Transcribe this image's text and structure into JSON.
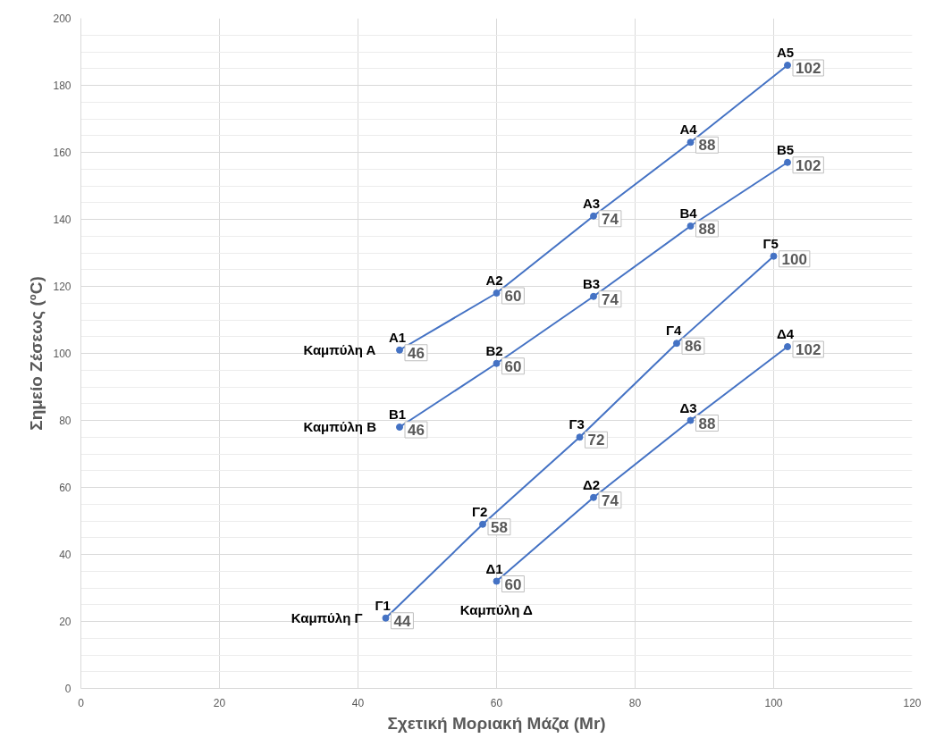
{
  "chart_data": {
    "type": "line",
    "xlabel": "Σχετική Μοριακή Μάζα (Mr)",
    "ylabel": "Σημείο Ζέσεως (ºC)",
    "xlim": [
      0,
      120
    ],
    "xticks": [
      0,
      20,
      40,
      60,
      80,
      100,
      120
    ],
    "ylim": [
      0,
      200
    ],
    "yticks": [
      0,
      20,
      40,
      60,
      80,
      100,
      120,
      140,
      160,
      180,
      200
    ],
    "grid": true,
    "marker": "circle",
    "line_style": "solid",
    "series": [
      {
        "name": "Καμπύλη Α",
        "color": "#4472c4",
        "x": [
          46,
          60,
          74,
          88,
          102
        ],
        "values": [
          101,
          118,
          141,
          163,
          186
        ]
      },
      {
        "name": "Καμπύλη Β",
        "color": "#4472c4",
        "x": [
          46,
          60,
          74,
          88,
          102
        ],
        "values": [
          78,
          97,
          117,
          138,
          157
        ]
      },
      {
        "name": "Καμπύλη Γ",
        "color": "#4472c4",
        "x": [
          44,
          58,
          72,
          86,
          100
        ],
        "values": [
          21,
          49,
          75,
          103,
          129
        ]
      },
      {
        "name": "Καμπύλη Δ",
        "color": "#4472c4",
        "x": [
          60,
          74,
          88,
          102
        ],
        "values": [
          32,
          57,
          80,
          102
        ]
      }
    ],
    "annotations": [
      {
        "text": "Α1",
        "x": 46,
        "y": 101
      },
      {
        "text": "46",
        "x": 46,
        "y": 101
      },
      {
        "text": "Α2",
        "x": 60,
        "y": 118
      },
      {
        "text": "60",
        "x": 60,
        "y": 118
      },
      {
        "text": "Α3",
        "x": 74,
        "y": 141
      },
      {
        "text": "74",
        "x": 74,
        "y": 141
      },
      {
        "text": "Α4",
        "x": 88,
        "y": 163
      },
      {
        "text": "88",
        "x": 88,
        "y": 163
      },
      {
        "text": "Α5",
        "x": 102,
        "y": 186
      },
      {
        "text": "102",
        "x": 102,
        "y": 186
      },
      {
        "text": "Β1",
        "x": 46,
        "y": 78
      },
      {
        "text": "46",
        "x": 46,
        "y": 78
      },
      {
        "text": "Β2",
        "x": 60,
        "y": 97
      },
      {
        "text": "60",
        "x": 60,
        "y": 97
      },
      {
        "text": "Β3",
        "x": 74,
        "y": 117
      },
      {
        "text": "74",
        "x": 74,
        "y": 117
      },
      {
        "text": "Β4",
        "x": 88,
        "y": 138
      },
      {
        "text": "88",
        "x": 88,
        "y": 138
      },
      {
        "text": "Β5",
        "x": 102,
        "y": 157
      },
      {
        "text": "102",
        "x": 102,
        "y": 157
      },
      {
        "text": "Γ1",
        "x": 44,
        "y": 21
      },
      {
        "text": "44",
        "x": 44,
        "y": 21
      },
      {
        "text": "Γ2",
        "x": 58,
        "y": 49
      },
      {
        "text": "58",
        "x": 58,
        "y": 49
      },
      {
        "text": "Γ3",
        "x": 72,
        "y": 75
      },
      {
        "text": "72",
        "x": 72,
        "y": 75
      },
      {
        "text": "Γ4",
        "x": 86,
        "y": 103
      },
      {
        "text": "86",
        "x": 86,
        "y": 103
      },
      {
        "text": "Γ5",
        "x": 100,
        "y": 129
      },
      {
        "text": "100",
        "x": 100,
        "y": 129
      },
      {
        "text": "Δ1",
        "x": 60,
        "y": 32
      },
      {
        "text": "60",
        "x": 60,
        "y": 32
      },
      {
        "text": "Δ2",
        "x": 74,
        "y": 57
      },
      {
        "text": "74",
        "x": 74,
        "y": 57
      },
      {
        "text": "Δ3",
        "x": 88,
        "y": 80
      },
      {
        "text": "88",
        "x": 88,
        "y": 80
      },
      {
        "text": "Δ4",
        "x": 102,
        "y": 102
      },
      {
        "text": "102",
        "x": 102,
        "y": 102
      }
    ]
  }
}
